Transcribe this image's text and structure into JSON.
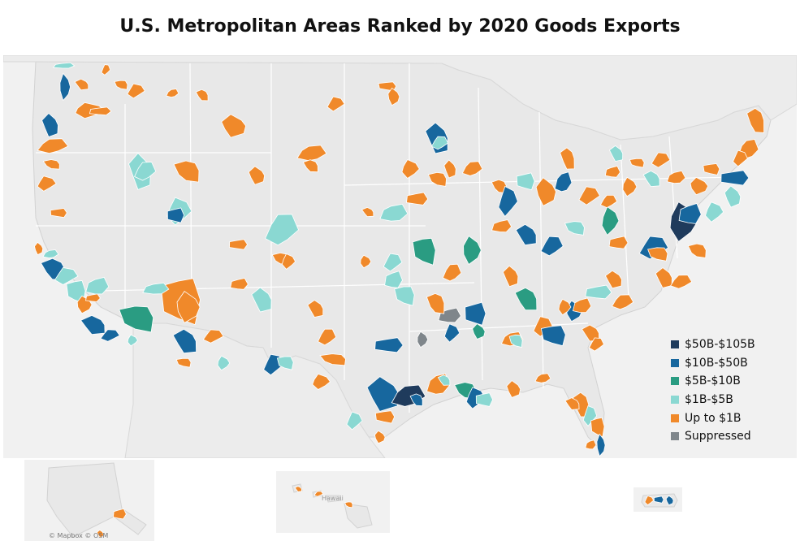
{
  "title": "U.S. Metropolitan Areas Ranked by 2020 Goods Exports",
  "legend": [
    {
      "label": "$50B-$105B",
      "color": "#1f3b5c"
    },
    {
      "label": "$10B-$50B",
      "color": "#17679e"
    },
    {
      "label": "$5B-$10B",
      "color": "#2a9c82"
    },
    {
      "label": "$1B-$5B",
      "color": "#8ad8d2"
    },
    {
      "label": "Up to $1B",
      "color": "#f0892a"
    },
    {
      "label": "Suppressed",
      "color": "#7f868b"
    }
  ],
  "inset_labels": {
    "hawaii": "Hawaii"
  },
  "attribution": "© Mapbox © OSM",
  "colors": {
    "land": "#e8e8e8",
    "water": "#f1f1f1",
    "state_border": "#ffffff",
    "coast": "#d6d6d6"
  }
}
